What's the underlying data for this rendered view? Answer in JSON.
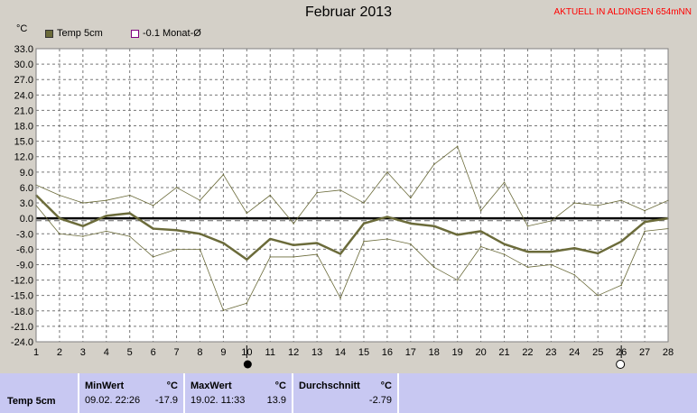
{
  "chart_data": {
    "type": "line",
    "title": "Februar 2013",
    "station_label": "AKTUELL IN ALDINGEN 654mNN",
    "y_unit": "°C",
    "ylim": [
      -24,
      33
    ],
    "yticks": [
      "33.0",
      "30.0",
      "27.0",
      "24.0",
      "21.0",
      "18.0",
      "15.0",
      "12.0",
      "9.0",
      "6.0",
      "3.0",
      "0.0",
      "-3.0",
      "-6.0",
      "-9.0",
      "-12.0",
      "-15.0",
      "-18.0",
      "-21.0",
      "-24.0"
    ],
    "ytick_values": [
      33,
      30,
      27,
      24,
      21,
      18,
      15,
      12,
      9,
      6,
      3,
      0,
      -3,
      -6,
      -9,
      -12,
      -15,
      -18,
      -21,
      -24
    ],
    "categories": [
      "1",
      "2",
      "3",
      "4",
      "5",
      "6",
      "7",
      "8",
      "9",
      "10",
      "11",
      "12",
      "13",
      "14",
      "15",
      "16",
      "17",
      "18",
      "19",
      "20",
      "21",
      "22",
      "23",
      "24",
      "25",
      "26",
      "27",
      "28"
    ],
    "grid": true,
    "legend": [
      {
        "name": "Temp 5cm",
        "color": "#6b6b3a",
        "style": "filled"
      },
      {
        "name": "-0.1 Monat-Ø",
        "color": "#800080",
        "style": "hollow"
      }
    ],
    "series": [
      {
        "name": "Temp 5cm",
        "role": "mean",
        "values": [
          4.5,
          0.0,
          -1.5,
          0.5,
          1.0,
          -2.0,
          -2.3,
          -3.0,
          -4.8,
          -8.0,
          -4.0,
          -5.2,
          -4.8,
          -6.9,
          -1.0,
          0.3,
          -1.0,
          -1.5,
          -3.2,
          -2.5,
          -5.0,
          -6.5,
          -6.5,
          -5.8,
          -6.8,
          -4.5,
          -0.7,
          0.0
        ]
      },
      {
        "role": "max",
        "values": [
          6.5,
          4.5,
          3.0,
          3.5,
          4.5,
          2.5,
          6.0,
          3.5,
          8.5,
          1.0,
          4.5,
          -1.0,
          5.0,
          5.5,
          3.0,
          9.0,
          4.0,
          10.5,
          14.0,
          1.5,
          7.0,
          -1.5,
          -0.5,
          3.0,
          2.5,
          3.5,
          1.5,
          3.5
        ]
      },
      {
        "role": "min",
        "values": [
          2.5,
          -3.0,
          -3.5,
          -2.5,
          -3.5,
          -7.5,
          -6.0,
          -6.0,
          -17.9,
          -16.5,
          -7.5,
          -7.5,
          -7.0,
          -15.5,
          -4.5,
          -4.0,
          -5.0,
          -9.5,
          -12.0,
          -5.5,
          -7.0,
          -9.5,
          -9.0,
          -11.0,
          -15.0,
          -13.0,
          -2.5,
          -2.0
        ]
      }
    ],
    "reference_line": {
      "name": "-0.1 Monat-Ø",
      "value": -0.1
    },
    "markers": [
      {
        "day": 10,
        "style": "filled-circle"
      },
      {
        "day": 26,
        "style": "hollow-circle"
      }
    ]
  },
  "stats": {
    "row_label": "Temp 5cm",
    "min_header": "MinWert",
    "min_unit": "°C",
    "min_date": "09.02.  22:26",
    "min_value": "-17.9",
    "max_header": "MaxWert",
    "max_unit": "°C",
    "max_date": "19.02.  11:33",
    "max_value": "13.9",
    "avg_header": "Durchschnitt",
    "avg_unit": "°C",
    "avg_value": "-2.79"
  },
  "colors": {
    "mean_line": "#6b6b3a",
    "minmax_line": "#6b6b3a",
    "zero_line": "#000000",
    "reference_line": "#666666",
    "grid": "#777777",
    "plot_bg": "#ffffff",
    "station_text": "#ff0000"
  }
}
